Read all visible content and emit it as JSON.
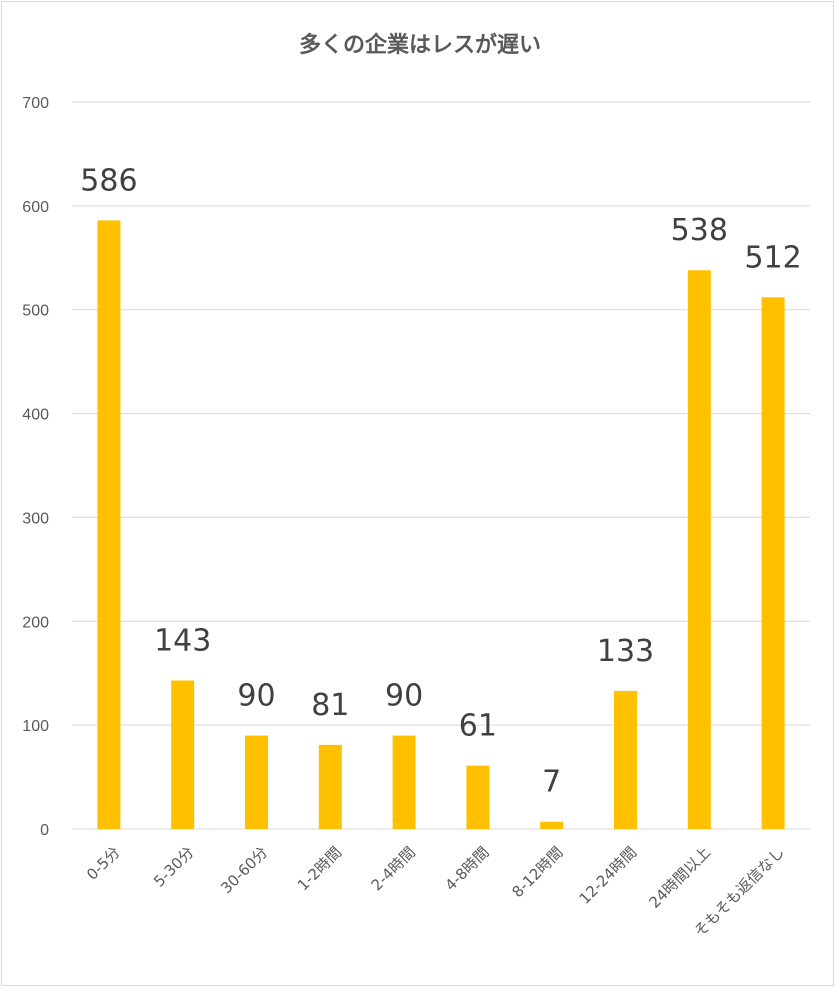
{
  "chart_data": {
    "type": "bar",
    "title": "多くの企業はレスが遅い",
    "categories": [
      "0-5分",
      "5-30分",
      "30-60分",
      "1-2時間",
      "2-4時間",
      "4-8時間",
      "8-12時間",
      "12-24時間",
      "24時間以上",
      "そもそも返信なし"
    ],
    "values": [
      586,
      143,
      90,
      81,
      90,
      61,
      7,
      133,
      538,
      512
    ],
    "ylim": [
      0,
      700
    ],
    "yticks": [
      0,
      100,
      200,
      300,
      400,
      500,
      600,
      700
    ],
    "bar_color": "#FFC000",
    "grid": true,
    "legend": "none"
  }
}
